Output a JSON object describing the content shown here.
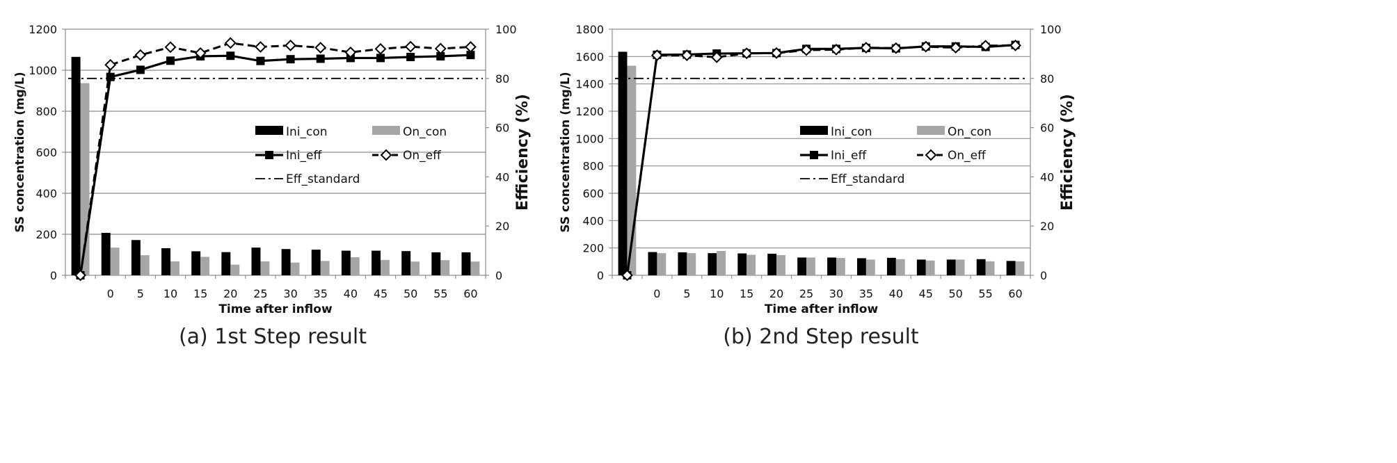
{
  "chart_data": [
    {
      "type": "bar+line",
      "caption": "(a) 1st Step result",
      "xlabel": "Time after inflow",
      "ylabel": "SS concentration (mg/L)",
      "y2label": "Efficiency (%)",
      "ylim": [
        0,
        1200
      ],
      "y2lim": [
        0,
        100
      ],
      "yticks": [
        "0",
        "200",
        "400",
        "600",
        "800",
        "1000",
        "1200"
      ],
      "y2ticks": [
        "0",
        "20",
        "40",
        "60",
        "80",
        "100"
      ],
      "categories": [
        "",
        "0",
        "5",
        "10",
        "15",
        "20",
        "25",
        "30",
        "35",
        "40",
        "45",
        "50",
        "55",
        "60"
      ],
      "bars": [
        {
          "name": "Ini_con",
          "color": "#000000",
          "values": [
            1065,
            207,
            172,
            132,
            117,
            113,
            135,
            128,
            125,
            120,
            120,
            118,
            112,
            112
          ]
        },
        {
          "name": "On_con",
          "color": "#a6a6a6",
          "values": [
            937,
            135,
            98,
            68,
            90,
            52,
            68,
            62,
            70,
            88,
            75,
            67,
            74,
            67
          ]
        }
      ],
      "lines": [
        {
          "name": "Ini_eff",
          "style": "solid",
          "marker": "square",
          "values": [
            0,
            80.6,
            83.5,
            87.2,
            89.0,
            89.2,
            87.1,
            87.8,
            88.0,
            88.3,
            88.3,
            88.7,
            89.0,
            89.5
          ]
        },
        {
          "name": "On_eff",
          "style": "dash",
          "marker": "diamond",
          "values": [
            0,
            85.5,
            89.5,
            92.7,
            90.3,
            94.4,
            92.8,
            93.4,
            92.5,
            90.6,
            92.0,
            92.9,
            92.1,
            92.8
          ]
        }
      ],
      "standard": {
        "name": "Eff_standard",
        "value": 80
      },
      "legend": {
        "ini_con": "Ini_con",
        "on_con": "On_con",
        "ini_eff": "Ini_eff",
        "on_eff": "On_eff",
        "eff_standard": "Eff_standard"
      },
      "grid": true
    },
    {
      "type": "bar+line",
      "caption": "(b) 2nd Step result",
      "xlabel": "Time after inflow",
      "ylabel": "SS concentration (mg/L)",
      "y2label": "Efficiency (%)",
      "ylim": [
        0,
        1800
      ],
      "y2lim": [
        0,
        100
      ],
      "yticks": [
        "0",
        "200",
        "400",
        "600",
        "800",
        "1000",
        "1200",
        "1400",
        "1600",
        "1800"
      ],
      "y2ticks": [
        "0",
        "20",
        "40",
        "60",
        "80",
        "100"
      ],
      "categories": [
        "",
        "0",
        "5",
        "10",
        "15",
        "20",
        "25",
        "30",
        "35",
        "40",
        "45",
        "50",
        "55",
        "60"
      ],
      "bars": [
        {
          "name": "Ini_con",
          "color": "#000000",
          "values": [
            1635,
            170,
            168,
            162,
            160,
            158,
            130,
            130,
            125,
            128,
            115,
            115,
            118,
            105
          ]
        },
        {
          "name": "On_con",
          "color": "#a6a6a6",
          "values": [
            1533,
            162,
            162,
            178,
            150,
            148,
            130,
            127,
            115,
            118,
            108,
            115,
            102,
            102
          ]
        }
      ],
      "lines": [
        {
          "name": "Ini_eff",
          "style": "solid",
          "marker": "square",
          "values": [
            0,
            89.6,
            89.7,
            90.1,
            90.2,
            90.3,
            92.0,
            92.0,
            92.4,
            92.2,
            93.0,
            93.0,
            92.8,
            93.6
          ]
        },
        {
          "name": "On_eff",
          "style": "dash",
          "marker": "diamond",
          "values": [
            0,
            89.4,
            89.4,
            88.6,
            90.2,
            90.3,
            91.5,
            91.7,
            92.5,
            92.3,
            92.9,
            92.5,
            93.3,
            93.4
          ]
        }
      ],
      "standard": {
        "name": "Eff_standard",
        "value": 80
      },
      "legend": {
        "ini_con": "Ini_con",
        "on_con": "On_con",
        "ini_eff": "Ini_eff",
        "on_eff": "On_eff",
        "eff_standard": "Eff_standard"
      },
      "grid": true
    }
  ]
}
